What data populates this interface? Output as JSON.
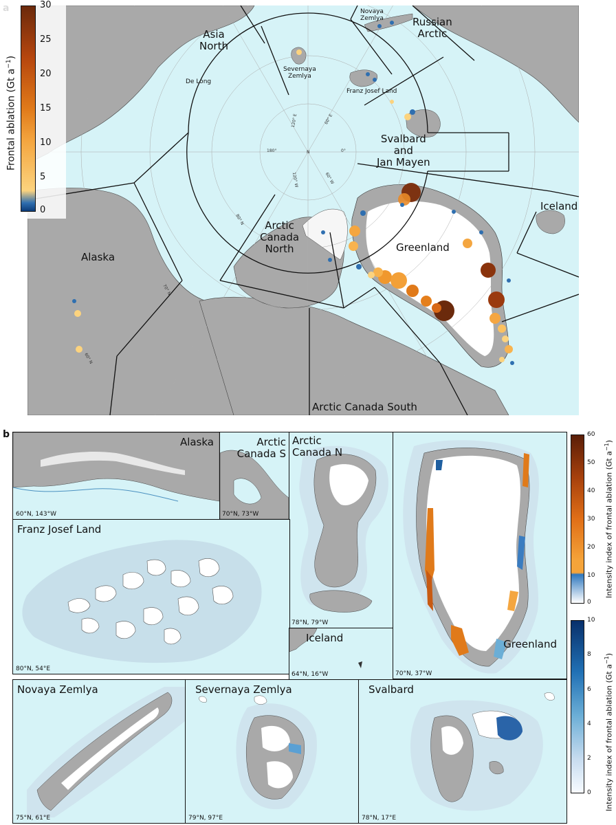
{
  "panel_a": {
    "letter": "a",
    "colorbar": {
      "title": "Frontal ablation (Gt a",
      "title_sup": "−1",
      "title_close": ")",
      "ticks": [
        "30",
        "25",
        "20",
        "15",
        "10",
        "5",
        "0"
      ],
      "colors": [
        "#6b2a0c",
        "#b6460e",
        "#e07a1a",
        "#f4a640",
        "#fcd37e",
        "#2f6fb0"
      ]
    },
    "regions": {
      "asia_north": "Asia\nNorth",
      "russian_arctic": "Russian\nArctic",
      "svalbard": "Svalbard\nand\nJan Mayen",
      "iceland": "Iceland",
      "greenland": "Greenland",
      "arctic_canada_north": "Arctic\nCanada\nNorth",
      "alaska": "Alaska",
      "arctic_canada_south": "Arctic Canada South"
    },
    "small_labels": {
      "novaya_zemlya": "Novaya\nZemlya",
      "severnaya_zemlya": "Severnaya\nZemlya",
      "de_long": "De Long",
      "franz_josef_land": "Franz Josef Land"
    },
    "graticule": {
      "n": "N",
      "deg0": "0°",
      "deg180": "180°",
      "e60": "60° E",
      "e120": "120° E",
      "w60": "60° W",
      "w120": "120° W",
      "n80": "80° N",
      "n70": "70° N",
      "n60": "60° N"
    }
  },
  "panel_b": {
    "letter": "b",
    "insets": {
      "alaska": {
        "title": "Alaska",
        "coord": "60°N, 143°W"
      },
      "arctic_canada_s": {
        "title": "Arctic\nCanada S",
        "coord": "70°N, 73°W"
      },
      "arctic_canada_n": {
        "title": "Arctic\nCanada N",
        "coord": "78°N, 79°W"
      },
      "greenland": {
        "title": "Greenland",
        "coord": "70°N, 37°W"
      },
      "franz_josef_land": {
        "title": "Franz Josef Land",
        "coord": "80°N, 54°E"
      },
      "iceland": {
        "title": "Iceland",
        "coord": "64°N, 16°W"
      },
      "novaya_zemlya": {
        "title": "Novaya Zemlya",
        "coord": "75°N, 61°E"
      },
      "severnaya_zemlya": {
        "title": "Severnaya Zemlya",
        "coord": "79°N, 97°E"
      },
      "svalbard": {
        "title": "Svalbard",
        "coord": "78°N, 17°E"
      }
    },
    "colorbar_top": {
      "title": "Intensity index of frontal ablation (Gt a",
      "title_sup": "−1",
      "title_close": ")",
      "ticks": [
        "60",
        "50",
        "40",
        "30",
        "20",
        "10",
        "0"
      ],
      "colors": [
        "#5a1e08",
        "#a6400c",
        "#e06f17",
        "#f5a43a",
        "#2f78be",
        "#ffffff"
      ]
    },
    "colorbar_bottom": {
      "title": "Intensity index of frontal ablation (Gt a",
      "title_sup": "−1",
      "title_close": ")",
      "ticks": [
        "10",
        "8",
        "6",
        "4",
        "2",
        "0"
      ],
      "colors": [
        "#08306b",
        "#2171b5",
        "#6baed6",
        "#c6dbef",
        "#f7fbff"
      ]
    }
  }
}
